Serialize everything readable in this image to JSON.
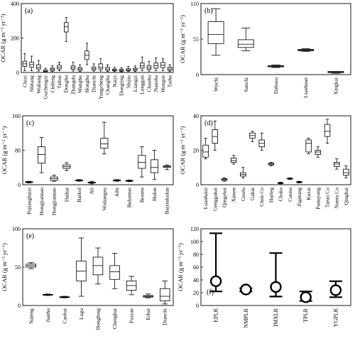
{
  "y_axis_label": "OCAR (g m⁻² yr⁻¹)",
  "colors": {
    "stroke": "#000000",
    "box_fill": "#ffffff",
    "text": "#000000",
    "category_f": "#3a6cb0"
  },
  "chart_data": [
    {
      "panel": "(a)",
      "type": "box",
      "ylabel": "OCAR (g m⁻² yr⁻¹)",
      "ylim": [
        0,
        400
      ],
      "yticks": [
        0,
        200,
        400
      ],
      "categories": [
        "Chixi",
        "Shitang",
        "Wuliang",
        "Guchengxi",
        "Chifeng",
        "Taibai",
        "Donghu",
        "Zhangdu",
        "Wanghu",
        "Honghu",
        "Dianchi",
        "Yangcheng",
        "Changhu",
        "Naiyi",
        "Dongting",
        "Shijiu",
        "Liangzi",
        "Longgan",
        "Chaohu",
        "Nanshu",
        "Hongze",
        "Taihu"
      ],
      "boxes": [
        {
          "min": 10,
          "q1": 35,
          "median": 50,
          "q3": 65,
          "max": 110
        },
        {
          "min": 10,
          "q1": 30,
          "median": 45,
          "q3": 60,
          "max": 95
        },
        {
          "min": 8,
          "q1": 20,
          "median": 30,
          "q3": 45,
          "max": 70
        },
        {
          "min": 2,
          "q1": 5,
          "median": 8,
          "q3": 15,
          "max": 25
        },
        {
          "min": 5,
          "q1": 10,
          "median": 18,
          "q3": 25,
          "max": 40
        },
        {
          "min": 10,
          "q1": 20,
          "median": 30,
          "q3": 42,
          "max": 60
        },
        {
          "min": 180,
          "q1": 235,
          "median": 265,
          "q3": 290,
          "max": 320
        },
        {
          "min": 8,
          "q1": 18,
          "median": 28,
          "q3": 38,
          "max": 60
        },
        {
          "min": 5,
          "q1": 12,
          "median": 20,
          "q3": 28,
          "max": 45
        },
        {
          "min": 45,
          "q1": 75,
          "median": 100,
          "q3": 125,
          "max": 170
        },
        {
          "min": 8,
          "q1": 15,
          "median": 22,
          "q3": 32,
          "max": 50
        },
        {
          "min": 8,
          "q1": 20,
          "median": 30,
          "q3": 50,
          "max": 80
        },
        {
          "min": 5,
          "q1": 12,
          "median": 20,
          "q3": 30,
          "max": 45
        },
        {
          "min": 5,
          "q1": 10,
          "median": 15,
          "q3": 20,
          "max": 30
        },
        {
          "min": 4,
          "q1": 8,
          "median": 12,
          "q3": 18,
          "max": 28
        },
        {
          "min": 5,
          "q1": 10,
          "median": 15,
          "q3": 22,
          "max": 35
        },
        {
          "min": 5,
          "q1": 12,
          "median": 18,
          "q3": 25,
          "max": 38
        },
        {
          "min": 10,
          "q1": 25,
          "median": 38,
          "q3": 55,
          "max": 90
        },
        {
          "min": 8,
          "q1": 18,
          "median": 28,
          "q3": 40,
          "max": 65
        },
        {
          "min": 10,
          "q1": 25,
          "median": 40,
          "q3": 55,
          "max": 85
        },
        {
          "min": 10,
          "q1": 28,
          "median": 42,
          "q3": 58,
          "max": 80
        },
        {
          "min": 5,
          "q1": 12,
          "median": 20,
          "q3": 30,
          "max": 45
        }
      ]
    },
    {
      "panel": "(b)",
      "type": "box",
      "ylabel": "OCAR (g m⁻² yr⁻¹)",
      "ylim": [
        0,
        110
      ],
      "yticks": [
        0,
        55,
        110
      ],
      "categories": [
        "Wuchi",
        "Sanchi",
        "Dabusu",
        "Lianhuan",
        "Xingkai"
      ],
      "boxes": [
        {
          "min": 30,
          "q1": 48,
          "median": 62,
          "q3": 82,
          "max": 102
        },
        {
          "min": 37,
          "q1": 42,
          "median": 47,
          "q3": 54,
          "max": 72
        },
        {
          "min": 11,
          "q1": 12,
          "median": 13,
          "q3": 14,
          "max": 15
        },
        {
          "min": 36,
          "q1": 37,
          "median": 38,
          "q3": 39,
          "max": 40
        },
        {
          "min": 2,
          "q1": 3,
          "median": 4,
          "q3": 5,
          "max": 5
        }
      ]
    },
    {
      "panel": "(c)",
      "type": "box",
      "ylabel": "OCAR (g m⁻² yr⁻¹)",
      "ylim": [
        0,
        160
      ],
      "yticks": [
        0,
        80,
        160
      ],
      "categories": [
        "Pojianghaizi",
        "Hongjiannao",
        "Hongjiannao",
        "Daihai",
        "Barkol",
        "Jili",
        "Wuliangsu",
        "Aibi",
        "Buluntuo",
        "Bosten",
        "Hulun",
        "Baiyinkulun"
      ],
      "boxes": [
        {
          "min": 4,
          "q1": 5,
          "median": 6,
          "q3": 7,
          "max": 8
        },
        {
          "min": 28,
          "q1": 50,
          "median": 70,
          "q3": 88,
          "max": 110
        },
        {
          "min": 8,
          "q1": 10,
          "median": 14,
          "q3": 18,
          "max": 22
        },
        {
          "min": 33,
          "q1": 38,
          "median": 42,
          "q3": 46,
          "max": 51
        },
        {
          "min": 8,
          "q1": 9,
          "median": 10,
          "q3": 11,
          "max": 12
        },
        {
          "min": 2,
          "q1": 4,
          "median": 5,
          "q3": 6,
          "max": 8
        },
        {
          "min": 72,
          "q1": 85,
          "median": 95,
          "q3": 108,
          "max": 145
        },
        {
          "min": 8,
          "q1": 9,
          "median": 10,
          "q3": 11,
          "max": 12
        },
        {
          "min": 7,
          "q1": 8,
          "median": 9,
          "q3": 10,
          "max": 11
        },
        {
          "min": 18,
          "q1": 38,
          "median": 52,
          "q3": 68,
          "max": 88
        },
        {
          "min": 12,
          "q1": 28,
          "median": 40,
          "q3": 58,
          "max": 80
        },
        {
          "min": 35,
          "q1": 40,
          "median": 42,
          "q3": 44,
          "max": 46
        }
      ]
    },
    {
      "panel": "(d)",
      "type": "box",
      "ylabel": "OCAR (g m⁻² yr⁻¹)",
      "ylim": [
        0,
        40
      ],
      "yticks": [
        0,
        20,
        40
      ],
      "categories": [
        "Luanhaizi",
        "Genggahai",
        "Qingshui",
        "Ximen",
        "Goulu",
        "Gahai",
        "Chen Co",
        "Hurleg",
        "Chaka",
        "Cuona",
        "Zigetang",
        "Kusai",
        "Punuyong",
        "Taruo Co",
        "Namu Co",
        "Qinghai"
      ],
      "boxes": [
        {
          "min": 15,
          "q1": 16,
          "median": 19,
          "q3": 23,
          "max": 27
        },
        {
          "min": 20,
          "q1": 24,
          "median": 28,
          "q3": 32,
          "max": 37
        },
        {
          "min": 2,
          "q1": 2.5,
          "median": 3,
          "q3": 3.5,
          "max": 4
        },
        {
          "min": 12,
          "q1": 13,
          "median": 14,
          "q3": 15.5,
          "max": 17
        },
        {
          "min": 4,
          "q1": 5,
          "median": 6,
          "q3": 7,
          "max": 10
        },
        {
          "min": 25,
          "q1": 27,
          "median": 28.5,
          "q3": 30,
          "max": 31
        },
        {
          "min": 20,
          "q1": 22,
          "median": 24,
          "q3": 26,
          "max": 30
        },
        {
          "min": 11,
          "q1": 11.5,
          "median": 12,
          "q3": 12.5,
          "max": 13
        },
        {
          "min": 0.5,
          "q1": 0.8,
          "median": 1,
          "q3": 1.2,
          "max": 1.5
        },
        {
          "min": 3,
          "q1": 3.3,
          "median": 3.5,
          "q3": 3.8,
          "max": 4
        },
        {
          "min": 1,
          "q1": 1.3,
          "median": 1.5,
          "q3": 1.8,
          "max": 2
        },
        {
          "min": 18,
          "q1": 19,
          "median": 24,
          "q3": 26,
          "max": 27
        },
        {
          "min": 16,
          "q1": 17.5,
          "median": 19,
          "q3": 20,
          "max": 22
        },
        {
          "min": 24,
          "q1": 28,
          "median": 31,
          "q3": 35,
          "max": 38
        },
        {
          "min": 9,
          "q1": 10.5,
          "median": 12,
          "q3": 13,
          "max": 15
        },
        {
          "min": 4,
          "q1": 5.5,
          "median": 7,
          "q3": 9,
          "max": 11
        }
      ]
    },
    {
      "panel": "(e)",
      "type": "box",
      "ylabel": "OCAR (g m⁻² yr⁻¹)",
      "ylim": [
        0,
        100
      ],
      "yticks": [
        0,
        50,
        100
      ],
      "categories": [
        "Naleng",
        "Jianhu",
        "Caohai",
        "Lugu",
        "Hongfeng",
        "Chenghai",
        "Fuxian",
        "Erhai",
        "Dianchi"
      ],
      "boxes": [
        {
          "min": 48,
          "q1": 50,
          "median": 52,
          "q3": 54,
          "max": 56
        },
        {
          "min": 13,
          "q1": 13.5,
          "median": 14,
          "q3": 14.5,
          "max": 15
        },
        {
          "min": 10,
          "q1": 10.5,
          "median": 11,
          "q3": 11.5,
          "max": 12
        },
        {
          "min": 12,
          "q1": 32,
          "median": 45,
          "q3": 58,
          "max": 88
        },
        {
          "min": 28,
          "q1": 40,
          "median": 52,
          "q3": 63,
          "max": 75
        },
        {
          "min": 22,
          "q1": 34,
          "median": 44,
          "q3": 52,
          "max": 68
        },
        {
          "min": 14,
          "q1": 20,
          "median": 26,
          "q3": 32,
          "max": 38
        },
        {
          "min": 10,
          "q1": 11,
          "median": 12,
          "q3": 13,
          "max": 15
        },
        {
          "min": 2,
          "q1": 6,
          "median": 12,
          "q3": 22,
          "max": 32
        }
      ]
    },
    {
      "panel": "(f)",
      "type": "errorbar",
      "ylabel": "OCAR (g m⁻² yr⁻¹)",
      "ylim": [
        0,
        120
      ],
      "yticks": [
        0,
        20,
        40,
        60,
        80,
        100,
        120
      ],
      "categories": [
        "EPLR",
        "NMPLR",
        "IMXLR",
        "TPLR",
        "YGPLR"
      ],
      "points": [
        {
          "value": 38,
          "lower": 22,
          "upper": 113
        },
        {
          "value": 25,
          "lower": 22,
          "upper": 27
        },
        {
          "value": 29,
          "lower": 14,
          "upper": 82
        },
        {
          "value": 13,
          "lower": 7,
          "upper": 22
        },
        {
          "value": 24,
          "lower": 13,
          "upper": 38
        }
      ]
    }
  ]
}
